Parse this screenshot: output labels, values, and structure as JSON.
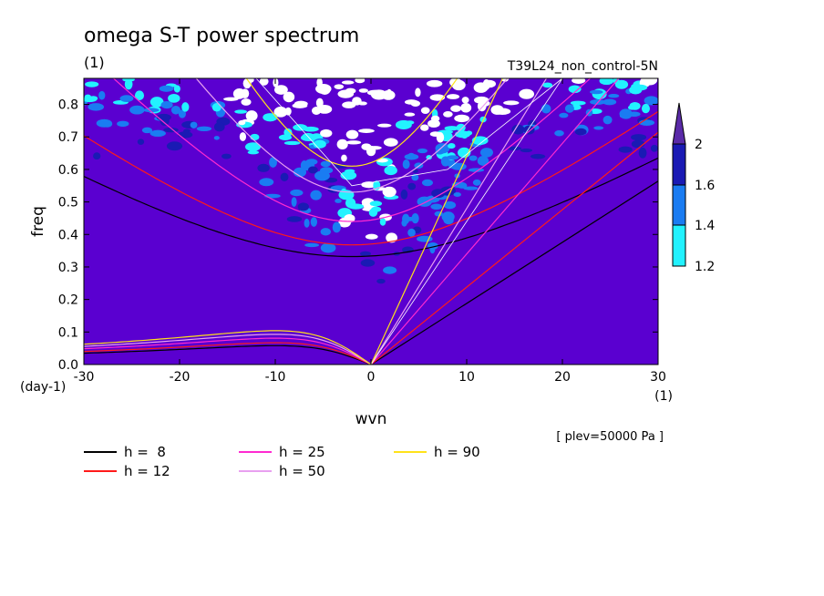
{
  "chart_data": {
    "type": "heatmap",
    "title": "omega S-T power spectrum",
    "units": "(1)",
    "experiment": "T39L24_non_control-5N",
    "xlabel": "wvn",
    "ylabel": "freq",
    "xunits": "(1)",
    "yunits": "(day-1)",
    "note": "[ plev=50000 Pa ]",
    "xlim": [
      -30,
      30
    ],
    "ylim": [
      0,
      0.88
    ],
    "xticks": [
      "-30",
      "-20",
      "-10",
      "0",
      "10",
      "20",
      "30"
    ],
    "yticks": [
      "0.0",
      "0.1",
      "0.2",
      "0.3",
      "0.4",
      "0.5",
      "0.6",
      "0.7",
      "0.8"
    ],
    "colorbar": {
      "levels": [
        "1.2",
        "1.4",
        "1.6",
        "2"
      ],
      "colors": {
        "below": "#5a00d0",
        "1.2-1.4": "#22f2ff",
        "1.4-1.6": "#1a7cf2",
        "1.6-2": "#1a1ab4",
        "above": "#5a2aa8"
      }
    },
    "background_color": "#5a00d0",
    "series": [
      {
        "name": "h =  8",
        "color": "#000000",
        "equivalent_depth_m": 8
      },
      {
        "name": "h = 12",
        "color": "#ff1a1a",
        "equivalent_depth_m": 12
      },
      {
        "name": "h = 25",
        "color": "#ff2ad0",
        "equivalent_depth_m": 25
      },
      {
        "name": "h = 50",
        "color": "#e8a0f0",
        "equivalent_depth_m": 50
      },
      {
        "name": "h = 90",
        "color": "#ffe21a",
        "equivalent_depth_m": 90
      }
    ],
    "white_lines_color": "#ffffff"
  }
}
